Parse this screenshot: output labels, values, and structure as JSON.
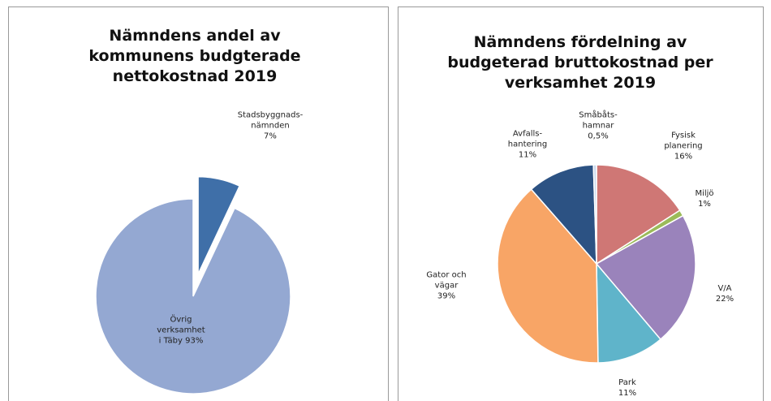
{
  "chart_data": [
    {
      "type": "pie",
      "title": "Nämndens andel av\nkommunens budgterade\nnettokostnad 2019",
      "categories": [
        "Stadsbyggnads-\nnämnden",
        "Övrig\nverksamhet\ni Täby"
      ],
      "values": [
        7,
        93
      ],
      "value_labels": [
        "7%",
        "93%"
      ],
      "colors": [
        "#3f6fa8",
        "#94a8d2"
      ],
      "explode": [
        true,
        false
      ]
    },
    {
      "type": "pie",
      "title": "Nämndens fördelning av\nbudgeterad bruttokostnad per\nverksamhet 2019",
      "categories": [
        "Fysisk\nplanering",
        "Miljö",
        "V/A",
        "Park",
        "Gator och\nvägar",
        "Avfalls-\nhantering",
        "Småbåts-\nhamnar"
      ],
      "values": [
        16,
        1,
        22,
        11,
        39,
        11,
        0.5
      ],
      "value_labels": [
        "16%",
        "1%",
        "22%",
        "11%",
        "39%",
        "11%",
        "0,5%"
      ],
      "colors": [
        "#cf7775",
        "#9bbb59",
        "#9a83bb",
        "#5fb4ca",
        "#f8a566",
        "#2c5283",
        "#c9d9ee"
      ]
    }
  ]
}
